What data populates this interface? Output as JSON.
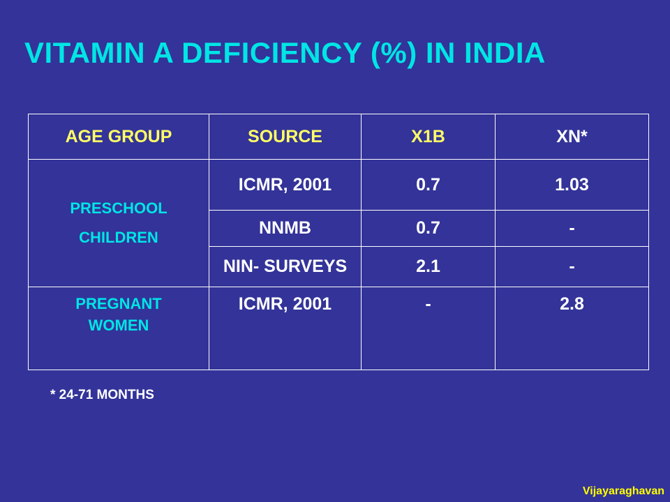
{
  "slide": {
    "title": "VITAMIN A DEFICIENCY (%) IN INDIA",
    "footnote": "* 24-71 MONTHS",
    "credit": "Vijayaraghavan",
    "colors": {
      "background": "#333399",
      "title": "#00E5E5",
      "header": "#FFFF66",
      "group_label": "#00E5E5",
      "cell_text": "#FFFFFF",
      "credit": "#FFFF00"
    }
  },
  "table": {
    "headers": [
      "AGE GROUP",
      "SOURCE",
      "X1B",
      "XN*"
    ],
    "groups": [
      {
        "label_line1": "PRESCHOOL",
        "label_line2": "CHILDREN",
        "rows": [
          {
            "source": "ICMR, 2001",
            "x1b": "0.7",
            "xn": "1.03"
          },
          {
            "source": "NNMB",
            "x1b": "0.7",
            "xn": "-"
          },
          {
            "source": "NIN- SURVEYS",
            "x1b": "2.1",
            "xn": "-"
          }
        ]
      },
      {
        "label_line1": "PREGNANT",
        "label_line2": "WOMEN",
        "rows": [
          {
            "source": "ICMR, 2001",
            "x1b": "-",
            "xn": "2.8"
          }
        ]
      }
    ]
  }
}
